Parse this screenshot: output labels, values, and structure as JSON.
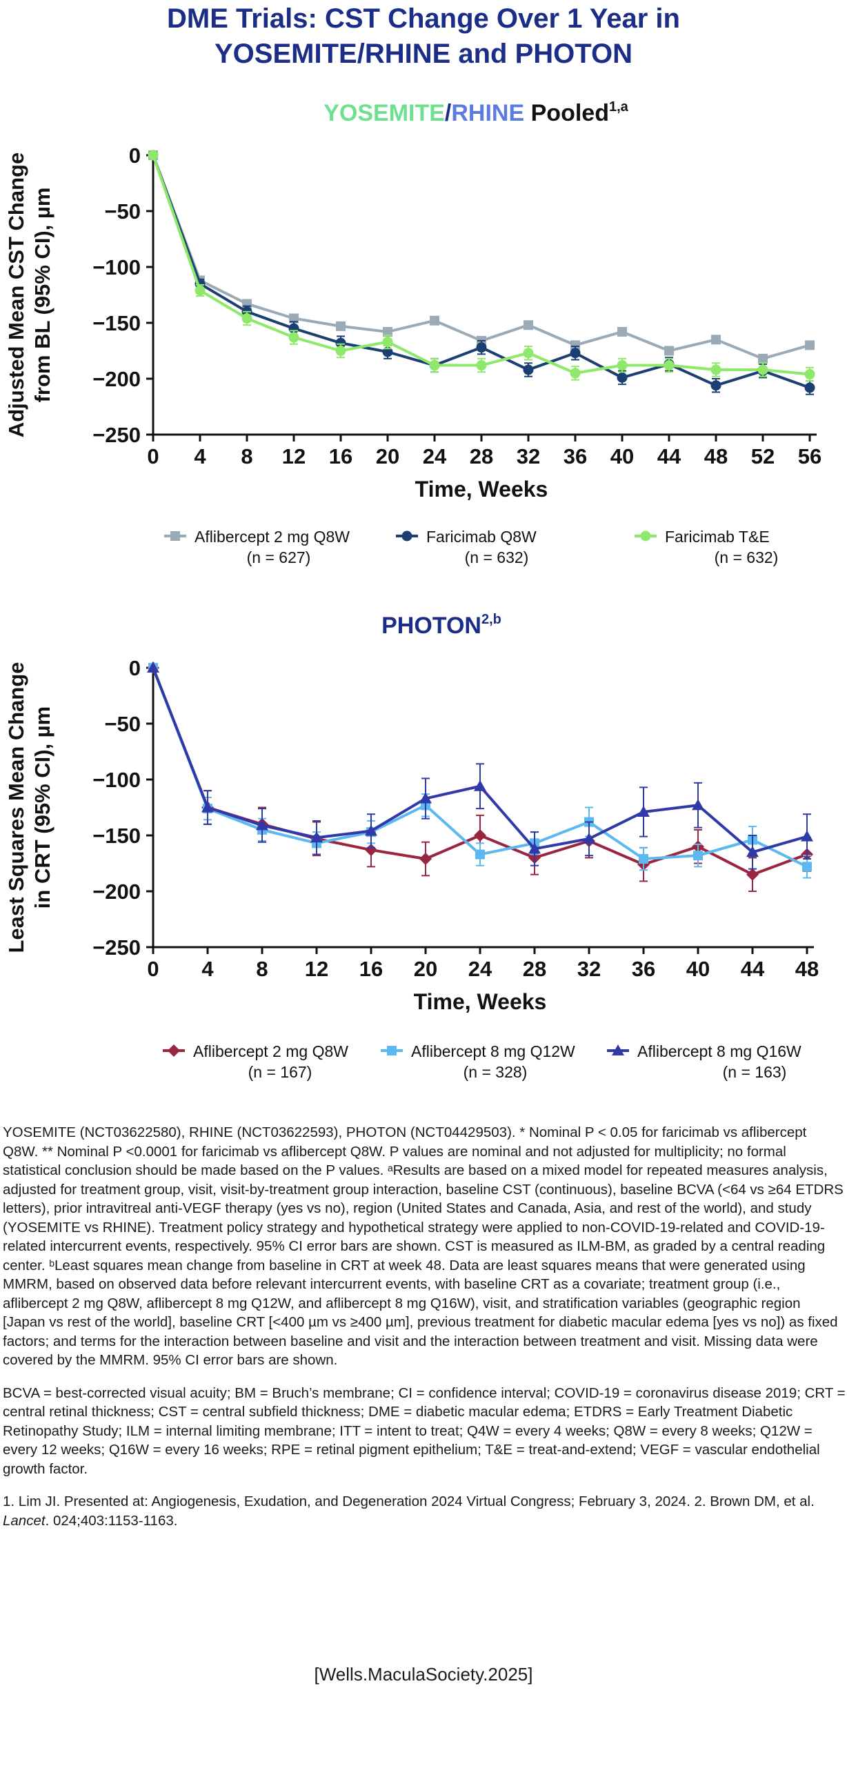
{
  "title_line1": "DME Trials: CST Change Over 1 Year in",
  "title_line2": "YOSEMITE/RHINE and PHOTON",
  "colors": {
    "title": "#1b2d86",
    "yosemite": "#6ee08f",
    "rhine": "#5b7be0",
    "afl2_pooled": "#9aaab6",
    "farQ8W": "#1c3f73",
    "farTE": "#8ee86a",
    "afl2_photon": "#9a2540",
    "afl8q12": "#5cb8ee",
    "afl8q16": "#2f3aa8"
  },
  "chart_data": [
    {
      "type": "line",
      "title_parts": [
        "YOSEMITE",
        "/",
        "RHINE",
        " Pooled",
        "1,a"
      ],
      "xlabel": "Time, Weeks",
      "ylabel_lines": [
        "Adjusted Mean CST Change",
        "from BL (95% CI), µm"
      ],
      "x": [
        0,
        4,
        8,
        12,
        16,
        20,
        24,
        28,
        32,
        36,
        40,
        44,
        48,
        52,
        56
      ],
      "xticks": [
        "0",
        "4",
        "8",
        "12",
        "16",
        "20",
        "24",
        "28",
        "32",
        "36",
        "40",
        "44",
        "48",
        "52",
        "56"
      ],
      "yticks": [
        0,
        -50,
        -100,
        -150,
        -200,
        -250
      ],
      "ytick_labels": [
        "0",
        "−50",
        "−100",
        "−150",
        "−200",
        "−250"
      ],
      "ylim": [
        -250,
        0
      ],
      "xlim": [
        0,
        56
      ],
      "legend_position": "bottom",
      "series": [
        {
          "name": "Aflibercept 2 mg Q8W",
          "n": "(n = 627)",
          "marker": "square",
          "color_key": "afl2_pooled",
          "values": [
            0,
            -112,
            -133,
            -146,
            -153,
            -158,
            -148,
            -166,
            -152,
            -170,
            -158,
            -175,
            -165,
            -182,
            -170
          ],
          "err": [
            0,
            3,
            3,
            3,
            3,
            3,
            3,
            3,
            3,
            3,
            3,
            3,
            3,
            3,
            3
          ]
        },
        {
          "name": "Faricimab Q8W",
          "n": "(n = 632)",
          "marker": "circle",
          "color_key": "farQ8W",
          "values": [
            0,
            -115,
            -140,
            -155,
            -168,
            -176,
            -188,
            -172,
            -192,
            -177,
            -199,
            -187,
            -206,
            -193,
            -208
          ],
          "err": [
            0,
            4,
            5,
            6,
            6,
            6,
            6,
            6,
            6,
            6,
            6,
            6,
            6,
            6,
            6
          ]
        },
        {
          "name": "Faricimab T&E",
          "n": "(n = 632)",
          "marker": "circle",
          "color_key": "farTE",
          "values": [
            0,
            -121,
            -146,
            -163,
            -175,
            -167,
            -188,
            -188,
            -177,
            -195,
            -188,
            -188,
            -192,
            -192,
            -196
          ],
          "err": [
            0,
            5,
            6,
            6,
            6,
            6,
            6,
            6,
            6,
            6,
            6,
            6,
            6,
            6,
            6
          ]
        }
      ]
    },
    {
      "type": "line",
      "title_parts": [
        "PHOTON",
        "2,b"
      ],
      "xlabel": "Time, Weeks",
      "ylabel_lines": [
        "Least Squares Mean Change",
        "in CRT (95% CI), µm"
      ],
      "x": [
        0,
        4,
        8,
        12,
        16,
        20,
        24,
        28,
        32,
        36,
        40,
        44,
        48
      ],
      "xticks": [
        "0",
        "4",
        "8",
        "12",
        "16",
        "20",
        "24",
        "28",
        "32",
        "36",
        "40",
        "44",
        "48"
      ],
      "yticks": [
        0,
        -50,
        -100,
        -150,
        -200,
        -250
      ],
      "ytick_labels": [
        "0",
        "−50",
        "−100",
        "−150",
        "−200",
        "−250"
      ],
      "ylim": [
        -250,
        0
      ],
      "xlim": [
        0,
        48
      ],
      "legend_position": "bottom",
      "series": [
        {
          "name": "Aflibercept 2 mg Q8W",
          "n": "(n = 167)",
          "marker": "diamond",
          "color_key": "afl2_photon",
          "values": [
            0,
            -125,
            -140,
            -153,
            -163,
            -171,
            -150,
            -170,
            -155,
            -176,
            -160,
            -185,
            -167
          ],
          "err": [
            0,
            15,
            15,
            15,
            15,
            15,
            18,
            15,
            15,
            15,
            15,
            15,
            15
          ]
        },
        {
          "name": "Aflibercept 8 mg Q12W",
          "n": "(n = 328)",
          "marker": "square",
          "color_key": "afl8q12",
          "values": [
            0,
            -126,
            -145,
            -157,
            -147,
            -123,
            -167,
            -157,
            -138,
            -171,
            -168,
            -154,
            -178
          ],
          "err": [
            0,
            10,
            10,
            10,
            10,
            10,
            10,
            10,
            13,
            10,
            10,
            12,
            10
          ]
        },
        {
          "name": "Aflibercept 8 mg Q16W",
          "n": "(n = 163)",
          "marker": "triangle",
          "color_key": "afl8q16",
          "values": [
            0,
            -125,
            -141,
            -152,
            -146,
            -117,
            -106,
            -162,
            -153,
            -129,
            -123,
            -165,
            -151
          ],
          "err": [
            0,
            15,
            15,
            15,
            15,
            18,
            20,
            15,
            15,
            22,
            20,
            15,
            20
          ]
        }
      ]
    }
  ],
  "footnote_p1": "YOSEMITE (NCT03622580), RHINE (NCT03622593), PHOTON (NCT04429503). * Nominal P < 0.05 for faricimab vs aflibercept Q8W. ** Nominal P <0.0001 for faricimab vs aflibercept Q8W. P values are nominal and not adjusted for multiplicity; no formal statistical conclusion should be made based on the P values. ᵃResults are based on a mixed model for repeated measures analysis, adjusted for treatment group, visit, visit-by-treatment group interaction, baseline CST (continuous), baseline BCVA (<64 vs ≥64 ETDRS letters), prior intravitreal anti-VEGF therapy (yes vs no), region (United States and Canada, Asia, and rest of the world), and study (YOSEMITE vs RHINE). Treatment policy strategy and hypothetical strategy were applied to non-COVID-19-related and COVID-19-related intercurrent events, respectively. 95% CI error bars are shown. CST is measured as ILM-BM, as graded by a central reading center. ᵇLeast squares mean change from baseline in CRT at week 48. Data are least squares means that were generated using MMRM, based on observed data before relevant intercurrent events, with baseline CRT as a covariate; treatment group (i.e., aflibercept 2 mg Q8W, aflibercept 8 mg Q12W, and aflibercept 8 mg Q16W), visit, and stratification variables (geographic region [Japan vs rest of the world], baseline CRT [<400 µm vs ≥400 µm], previous treatment for diabetic macular edema [yes vs no]) as fixed factors; and terms for the interaction between baseline and visit and the interaction between treatment and visit. Missing data were covered by the MMRM. 95% CI error bars are shown.",
  "footnote_p2": "BCVA = best-corrected visual acuity; BM = Bruch’s membrane; CI = confidence interval; COVID-19 = coronavirus disease 2019; CRT = central retinal thickness; CST = central subfield thickness; DME = diabetic macular edema; ETDRS = Early Treatment Diabetic Retinopathy Study; ILM = internal limiting membrane; ITT = intent to treat; Q4W = every 4 weeks; Q8W = every 8 weeks; Q12W = every 12 weeks; Q16W = every 16 weeks; RPE = retinal pigment epithelium; T&E = treat-and-extend; VEGF = vascular endothelial growth factor.",
  "ref_p1_a": "1. Lim JI. Presented at: Angiogenesis, Exudation, and Degeneration 2024 Virtual Congress; February 3, 2024. 2. Brown DM, et al. ",
  "ref_journal": "Lancet",
  "ref_p1_b": ". 024;403:1153-1163.",
  "source": "[Wells.MaculaSociety.2025]"
}
